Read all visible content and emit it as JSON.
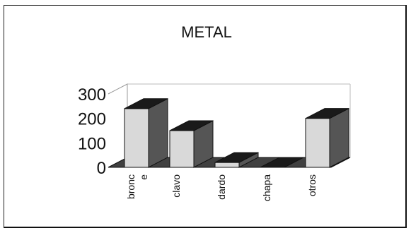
{
  "chart_data": {
    "type": "bar",
    "title": "METAL",
    "xlabel": "",
    "ylabel": "",
    "categories": [
      [
        "bronc",
        "e"
      ],
      [
        "clavo"
      ],
      [
        "dardo"
      ],
      [
        "chapa"
      ],
      [
        "otros"
      ]
    ],
    "values": [
      240,
      150,
      20,
      0,
      200
    ],
    "ylim": [
      0,
      300
    ],
    "yticks": [
      "0",
      "100",
      "200",
      "300"
    ],
    "style": "3d",
    "grid": false,
    "legend": "none",
    "colors": {
      "bar_front": "#d9d9d9",
      "bar_side": "#555555",
      "bar_top": "#1a1a1a",
      "floor": "#404040",
      "axis": "#222222"
    }
  }
}
